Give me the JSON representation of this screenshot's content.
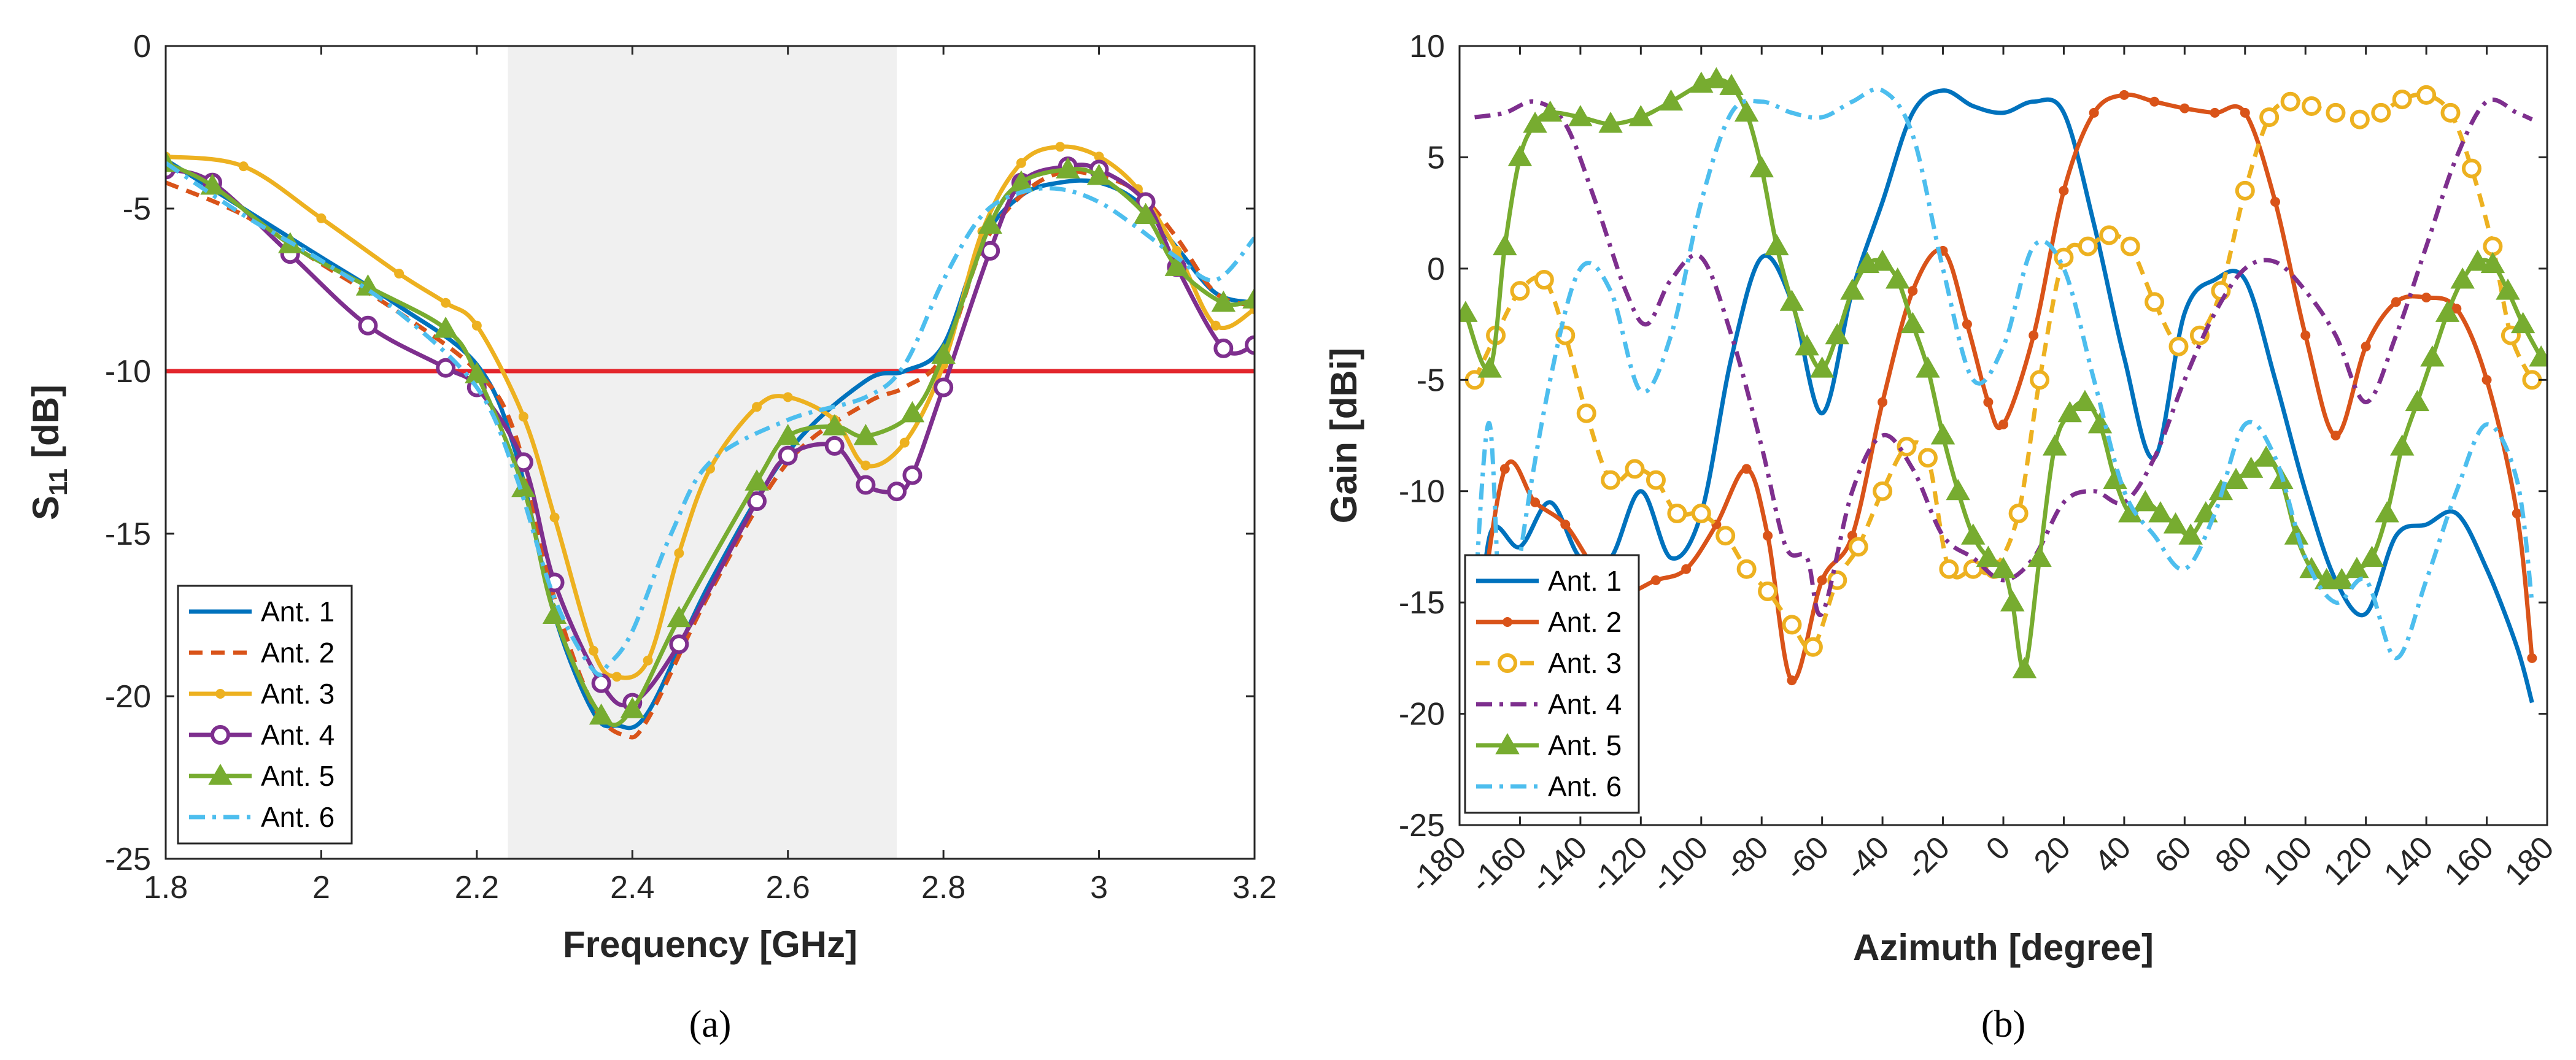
{
  "colors": {
    "ant1": "#0072BD",
    "ant2": "#D95319",
    "ant3": "#EDB120",
    "ant4": "#7E2F8E",
    "ant5": "#77AC30",
    "ant6": "#4DBEEE",
    "threshold": "#E3262C",
    "band": "#F0F0F0",
    "axis": "#262626"
  },
  "chart_data": [
    {
      "id": "a",
      "panel_label": "(a)",
      "type": "line",
      "xlabel": "Frequency [GHz]",
      "ylabel_main": "S",
      "ylabel_sub": "11",
      "ylabel_tail": " [dB]",
      "xlim": [
        1.8,
        3.2
      ],
      "ylim": [
        -25,
        0
      ],
      "xticks": [
        1.8,
        2,
        2.2,
        2.4,
        2.6,
        2.8,
        3,
        3.2
      ],
      "xtick_labels": [
        "1.8",
        "2",
        "2.2",
        "2.4",
        "2.6",
        "2.8",
        "3",
        "3.2"
      ],
      "yticks": [
        -25,
        -20,
        -15,
        -10,
        -5,
        0
      ],
      "ytick_labels": [
        "-25",
        "-20",
        "-15",
        "-10",
        "-5",
        "0"
      ],
      "shaded_band": [
        2.24,
        2.74
      ],
      "threshold": -10,
      "legend_position": "bottom-left",
      "series": [
        {
          "name": "Ant. 1",
          "style": "solid",
          "marker": "none",
          "x": [
            1.8,
            1.9,
            2.0,
            2.1,
            2.2,
            2.25,
            2.3,
            2.35,
            2.38,
            2.42,
            2.5,
            2.6,
            2.7,
            2.75,
            2.8,
            2.85,
            2.9,
            2.95,
            3.0,
            3.05,
            3.1,
            3.15,
            3.2
          ],
          "y": [
            -3.5,
            -5.0,
            -6.5,
            -8.0,
            -9.8,
            -12.5,
            -17.5,
            -20.5,
            -20.9,
            -20.5,
            -16.5,
            -12.5,
            -10.3,
            -10.0,
            -9.2,
            -6.0,
            -4.6,
            -4.2,
            -4.2,
            -4.8,
            -6.2,
            -7.6,
            -7.9
          ]
        },
        {
          "name": "Ant. 2",
          "style": "dash",
          "marker": "none",
          "x": [
            1.8,
            1.9,
            2.0,
            2.1,
            2.2,
            2.25,
            2.3,
            2.35,
            2.39,
            2.42,
            2.5,
            2.6,
            2.7,
            2.75,
            2.8,
            2.85,
            2.9,
            2.95,
            3.0,
            3.05,
            3.1,
            3.15,
            3.2
          ],
          "y": [
            -4.2,
            -5.2,
            -6.7,
            -8.2,
            -10.0,
            -12.0,
            -17.0,
            -20.3,
            -21.2,
            -20.7,
            -16.8,
            -12.8,
            -11.0,
            -10.5,
            -9.5,
            -6.2,
            -4.6,
            -3.9,
            -4.0,
            -4.5,
            -5.9,
            -7.6,
            -8.0
          ]
        },
        {
          "name": "Ant. 3",
          "style": "solid",
          "marker": "dot",
          "x": [
            1.8,
            1.9,
            2.0,
            2.1,
            2.16,
            2.2,
            2.26,
            2.3,
            2.35,
            2.38,
            2.42,
            2.46,
            2.5,
            2.56,
            2.6,
            2.66,
            2.7,
            2.75,
            2.8,
            2.85,
            2.9,
            2.95,
            3.0,
            3.05,
            3.1,
            3.15,
            3.2
          ],
          "y": [
            -3.4,
            -3.7,
            -5.3,
            -7.0,
            -7.9,
            -8.6,
            -11.4,
            -14.5,
            -18.6,
            -19.4,
            -18.9,
            -15.6,
            -13.0,
            -11.1,
            -10.8,
            -11.5,
            -12.9,
            -12.2,
            -9.8,
            -5.7,
            -3.6,
            -3.1,
            -3.4,
            -4.4,
            -6.3,
            -8.6,
            -8.1
          ]
        },
        {
          "name": "Ant. 4",
          "style": "solid",
          "marker": "circle",
          "x": [
            1.8,
            1.86,
            1.96,
            2.06,
            2.16,
            2.2,
            2.26,
            2.3,
            2.36,
            2.4,
            2.46,
            2.56,
            2.6,
            2.66,
            2.7,
            2.74,
            2.76,
            2.8,
            2.86,
            2.9,
            2.96,
            3.0,
            3.06,
            3.1,
            3.16,
            3.2
          ],
          "y": [
            -3.8,
            -4.2,
            -6.4,
            -8.6,
            -9.9,
            -10.5,
            -12.8,
            -16.5,
            -19.6,
            -20.2,
            -18.4,
            -14.0,
            -12.6,
            -12.3,
            -13.5,
            -13.7,
            -13.2,
            -10.5,
            -6.3,
            -4.2,
            -3.7,
            -3.8,
            -4.8,
            -6.8,
            -9.3,
            -9.2
          ]
        },
        {
          "name": "Ant. 5",
          "style": "solid",
          "marker": "triangle",
          "x": [
            1.8,
            1.86,
            1.96,
            2.06,
            2.16,
            2.2,
            2.26,
            2.3,
            2.36,
            2.4,
            2.46,
            2.56,
            2.6,
            2.66,
            2.7,
            2.76,
            2.8,
            2.86,
            2.9,
            2.96,
            3.0,
            3.06,
            3.1,
            3.16,
            3.2
          ],
          "y": [
            -3.6,
            -4.3,
            -6.1,
            -7.4,
            -8.7,
            -10.1,
            -13.6,
            -17.5,
            -20.6,
            -20.4,
            -17.6,
            -13.4,
            -12.0,
            -11.7,
            -12.0,
            -11.3,
            -9.5,
            -5.5,
            -4.2,
            -3.8,
            -4.0,
            -5.2,
            -6.8,
            -7.9,
            -7.8
          ]
        },
        {
          "name": "Ant. 6",
          "style": "dashdot",
          "marker": "none",
          "x": [
            1.8,
            1.9,
            2.0,
            2.1,
            2.2,
            2.25,
            2.3,
            2.35,
            2.37,
            2.4,
            2.45,
            2.5,
            2.6,
            2.7,
            2.75,
            2.8,
            2.85,
            2.9,
            2.95,
            3.0,
            3.05,
            3.1,
            3.15,
            3.2
          ],
          "y": [
            -3.6,
            -5.2,
            -6.6,
            -8.2,
            -10.5,
            -13.2,
            -17.0,
            -19.2,
            -19.0,
            -18.0,
            -15.0,
            -12.8,
            -11.5,
            -10.8,
            -9.8,
            -7.2,
            -5.2,
            -4.5,
            -4.4,
            -4.8,
            -5.6,
            -6.5,
            -7.2,
            -5.9
          ]
        }
      ],
      "legend": [
        "Ant. 1",
        "Ant. 2",
        "Ant. 3",
        "Ant. 4",
        "Ant. 5",
        "Ant. 6"
      ]
    },
    {
      "id": "b",
      "panel_label": "(b)",
      "type": "line",
      "xlabel": "Azimuth [degree]",
      "ylabel": "Gain [dBi]",
      "xlim": [
        -180,
        180
      ],
      "ylim": [
        -25,
        10
      ],
      "xticks": [
        -180,
        -160,
        -140,
        -120,
        -100,
        -80,
        -60,
        -40,
        -20,
        0,
        20,
        40,
        60,
        80,
        100,
        120,
        140,
        160,
        180
      ],
      "xtick_labels": [
        "-180",
        "-160",
        "-140",
        "-120",
        "-100",
        "-80",
        "-60",
        "-40",
        "-20",
        "0",
        "20",
        "40",
        "60",
        "80",
        "100",
        "120",
        "140",
        "160",
        "180"
      ],
      "yticks": [
        -25,
        -20,
        -15,
        -10,
        -5,
        0,
        5,
        10
      ],
      "ytick_labels": [
        "-25",
        "-20",
        "-15",
        "-10",
        "-5",
        "0",
        "5",
        "10"
      ],
      "legend_position": "bottom-left",
      "series": [
        {
          "name": "Ant. 1",
          "style": "solid",
          "marker": "none",
          "x": [
            -175,
            -170,
            -160,
            -150,
            -140,
            -130,
            -120,
            -110,
            -100,
            -90,
            -80,
            -70,
            -60,
            -50,
            -40,
            -30,
            -20,
            -10,
            0,
            10,
            20,
            30,
            40,
            50,
            60,
            70,
            80,
            90,
            100,
            110,
            120,
            130,
            140,
            150,
            160,
            170,
            175
          ],
          "y": [
            -20.0,
            -12.0,
            -12.5,
            -10.5,
            -13.0,
            -13.0,
            -10.0,
            -13.0,
            -11.0,
            -4.0,
            0.5,
            -1.5,
            -6.5,
            -1.0,
            3.0,
            7.0,
            8.0,
            7.3,
            7.0,
            7.5,
            7.0,
            2.0,
            -4.0,
            -8.5,
            -2.0,
            -0.5,
            -0.5,
            -5.0,
            -10.0,
            -14.0,
            -15.5,
            -12.0,
            -11.5,
            -11.0,
            -13.5,
            -17.0,
            -19.5
          ]
        },
        {
          "name": "Ant. 2",
          "style": "solid",
          "marker": "dot",
          "x": [
            -175,
            -165,
            -155,
            -145,
            -135,
            -125,
            -115,
            -105,
            -95,
            -85,
            -78,
            -70,
            -60,
            -50,
            -40,
            -30,
            -20,
            -12,
            -5,
            0,
            10,
            20,
            30,
            40,
            50,
            60,
            70,
            80,
            90,
            100,
            110,
            120,
            130,
            140,
            150,
            160,
            170,
            175
          ],
          "y": [
            -17.5,
            -9.0,
            -10.5,
            -11.5,
            -13.5,
            -14.5,
            -14.0,
            -13.5,
            -11.5,
            -9.0,
            -12.0,
            -18.5,
            -14.0,
            -12.0,
            -6.0,
            -1.0,
            0.8,
            -2.5,
            -6.0,
            -7.0,
            -3.0,
            3.5,
            7.0,
            7.8,
            7.5,
            7.2,
            7.0,
            7.0,
            3.0,
            -3.0,
            -7.5,
            -3.5,
            -1.5,
            -1.3,
            -1.8,
            -5.0,
            -11.0,
            -17.5
          ]
        },
        {
          "name": "Ant. 3",
          "style": "dash",
          "marker": "circle",
          "x": [
            -175,
            -168,
            -160,
            -152,
            -145,
            -138,
            -130,
            -122,
            -115,
            -108,
            -100,
            -92,
            -85,
            -78,
            -70,
            -63,
            -55,
            -48,
            -40,
            -32,
            -25,
            -18,
            -10,
            -3,
            5,
            12,
            20,
            28,
            35,
            42,
            50,
            58,
            65,
            72,
            80,
            88,
            95,
            102,
            110,
            118,
            125,
            132,
            140,
            148,
            155,
            162,
            168,
            175
          ],
          "y": [
            -5.0,
            -3.0,
            -1.0,
            -0.5,
            -3.0,
            -6.5,
            -9.5,
            -9.0,
            -9.5,
            -11.0,
            -11.0,
            -12.0,
            -13.5,
            -14.5,
            -16.0,
            -17.0,
            -14.0,
            -12.5,
            -10.0,
            -8.0,
            -8.5,
            -13.5,
            -13.5,
            -13.5,
            -11.0,
            -5.0,
            0.5,
            1.0,
            1.5,
            1.0,
            -1.5,
            -3.5,
            -3.0,
            -1.0,
            3.5,
            6.8,
            7.5,
            7.3,
            7.0,
            6.7,
            7.0,
            7.6,
            7.8,
            7.0,
            4.5,
            1.0,
            -3.0,
            -5.0
          ]
        },
        {
          "name": "Ant. 4",
          "style": "dashdot",
          "marker": "none",
          "x": [
            -175,
            -165,
            -155,
            -145,
            -135,
            -125,
            -118,
            -110,
            -100,
            -90,
            -80,
            -72,
            -65,
            -60,
            -50,
            -40,
            -30,
            -20,
            -10,
            0,
            10,
            20,
            30,
            40,
            50,
            60,
            70,
            80,
            90,
            100,
            110,
            120,
            130,
            140,
            150,
            160,
            170,
            175
          ],
          "y": [
            6.8,
            7.0,
            7.5,
            6.5,
            3.0,
            -1.0,
            -2.5,
            -0.5,
            0.5,
            -3.0,
            -8.0,
            -12.5,
            -13.0,
            -15.5,
            -10.0,
            -7.5,
            -9.0,
            -12.0,
            -13.0,
            -14.0,
            -13.0,
            -10.5,
            -10.0,
            -10.5,
            -8.5,
            -5.0,
            -2.0,
            0.0,
            0.3,
            -1.0,
            -3.0,
            -6.0,
            -3.0,
            1.0,
            5.0,
            7.5,
            7.0,
            6.7
          ]
        },
        {
          "name": "Ant. 5",
          "style": "solid",
          "marker": "triangle",
          "x": [
            -178,
            -170,
            -165,
            -160,
            -155,
            -150,
            -140,
            -130,
            -120,
            -110,
            -100,
            -95,
            -90,
            -85,
            -80,
            -75,
            -70,
            -65,
            -60,
            -55,
            -50,
            -45,
            -40,
            -35,
            -30,
            -25,
            -20,
            -15,
            -10,
            -5,
            0,
            3,
            7,
            12,
            17,
            22,
            27,
            32,
            37,
            42,
            47,
            52,
            57,
            62,
            67,
            72,
            77,
            82,
            87,
            92,
            97,
            102,
            107,
            112,
            117,
            122,
            127,
            132,
            137,
            142,
            147,
            152,
            157,
            162,
            167,
            172,
            178
          ],
          "y": [
            -2.0,
            -4.5,
            1.0,
            5.0,
            6.5,
            7.0,
            6.8,
            6.5,
            6.8,
            7.5,
            8.3,
            8.5,
            8.2,
            7.0,
            4.5,
            1.0,
            -1.5,
            -3.5,
            -4.5,
            -3.0,
            -1.0,
            0.2,
            0.3,
            -0.5,
            -2.5,
            -4.5,
            -7.5,
            -10.0,
            -12.0,
            -13.0,
            -13.5,
            -15.0,
            -18.0,
            -13.0,
            -8.0,
            -6.5,
            -6.0,
            -7.0,
            -9.5,
            -11.0,
            -10.5,
            -11.0,
            -11.5,
            -12.0,
            -11.0,
            -10.0,
            -9.5,
            -9.0,
            -8.5,
            -9.5,
            -12.0,
            -13.5,
            -14.0,
            -14.0,
            -13.5,
            -13.0,
            -11.0,
            -8.0,
            -6.0,
            -4.0,
            -2.0,
            -0.5,
            0.3,
            0.2,
            -1.0,
            -2.5,
            -4.0
          ]
        },
        {
          "name": "Ant. 6",
          "style": "dashdot",
          "marker": "none",
          "x": [
            -175,
            -170,
            -165,
            -160,
            -150,
            -140,
            -130,
            -120,
            -110,
            -100,
            -90,
            -80,
            -70,
            -60,
            -50,
            -40,
            -30,
            -20,
            -10,
            0,
            10,
            20,
            30,
            40,
            50,
            60,
            70,
            80,
            90,
            100,
            110,
            120,
            130,
            140,
            150,
            160,
            170,
            175
          ],
          "y": [
            -15.0,
            -7.0,
            -20.0,
            -13.0,
            -5.0,
            0.0,
            -1.0,
            -5.5,
            -3.0,
            3.0,
            7.0,
            7.5,
            7.0,
            6.8,
            7.5,
            8.0,
            6.0,
            0.0,
            -5.0,
            -3.5,
            1.0,
            0.0,
            -5.0,
            -10.0,
            -12.0,
            -13.5,
            -11.0,
            -7.0,
            -8.5,
            -13.0,
            -15.0,
            -14.0,
            -17.5,
            -14.0,
            -10.0,
            -7.0,
            -9.5,
            -15.0
          ]
        }
      ],
      "legend": [
        "Ant. 1",
        "Ant. 2",
        "Ant. 3",
        "Ant. 4",
        "Ant. 5",
        "Ant. 6"
      ]
    }
  ]
}
